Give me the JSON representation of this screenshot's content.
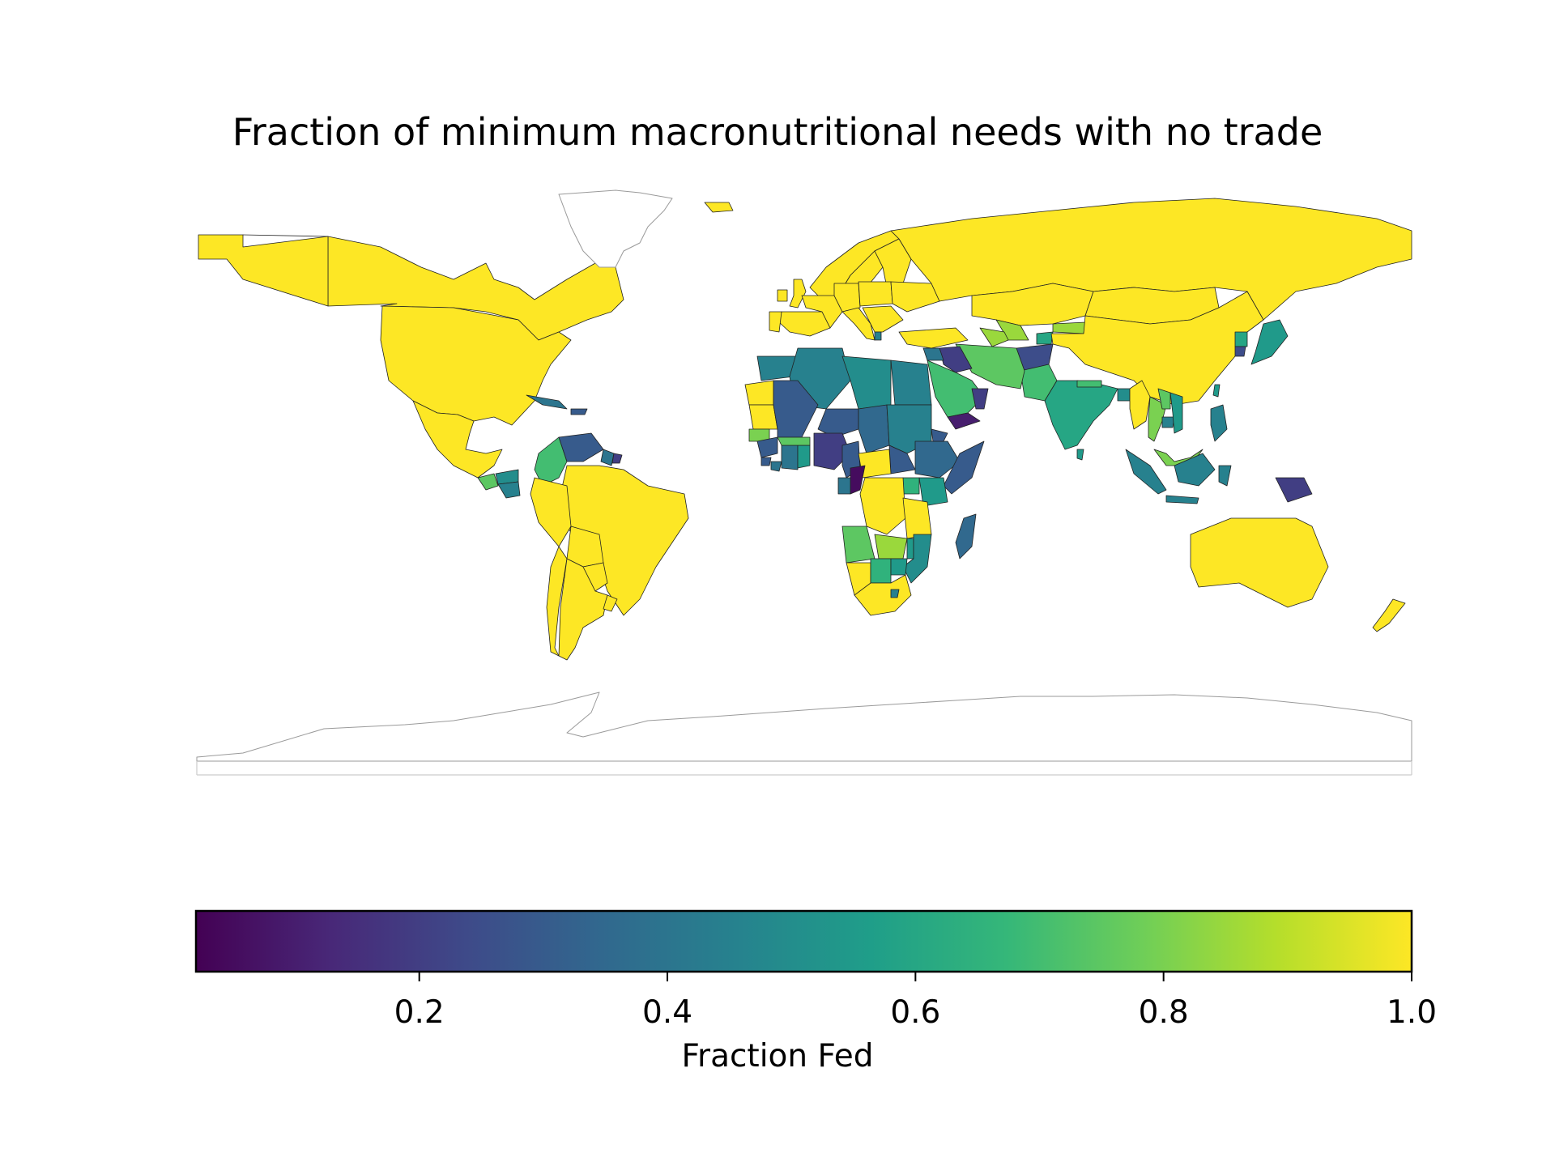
{
  "chart_data": {
    "type": "choropleth",
    "title": "Fraction of minimum macronutritional needs with no trade",
    "colorbar": {
      "label": "Fraction Fed",
      "range": [
        0.02,
        1.0
      ],
      "ticks": [
        "0.2",
        "0.4",
        "0.6",
        "0.8",
        "1.0"
      ],
      "tick_values": [
        0.2,
        0.4,
        0.6,
        0.8,
        1.0
      ],
      "colormap": "viridis",
      "orientation": "horizontal",
      "placement": "bottom"
    },
    "colormap_stops": [
      "#440154",
      "#482878",
      "#3e4a89",
      "#31688e",
      "#26828e",
      "#1f9e89",
      "#35b779",
      "#6ece58",
      "#b5de2b",
      "#fde725"
    ],
    "no_data_color": "#ffffff",
    "regions": [
      {
        "name": "Canada",
        "value": 1.0
      },
      {
        "name": "United States",
        "value": 1.0
      },
      {
        "name": "Alaska",
        "value": 1.0
      },
      {
        "name": "Mexico",
        "value": 1.0
      },
      {
        "name": "Guatemala",
        "value": 0.75
      },
      {
        "name": "Honduras",
        "value": 0.5
      },
      {
        "name": "Nicaragua",
        "value": 0.45
      },
      {
        "name": "Cuba",
        "value": 0.4
      },
      {
        "name": "Haiti",
        "value": 0.3
      },
      {
        "name": "Colombia",
        "value": 0.7
      },
      {
        "name": "Venezuela",
        "value": 0.3
      },
      {
        "name": "Guyana",
        "value": 0.4
      },
      {
        "name": "Suriname",
        "value": 0.2
      },
      {
        "name": "Brazil",
        "value": 1.0
      },
      {
        "name": "Peru",
        "value": 1.0
      },
      {
        "name": "Bolivia",
        "value": 1.0
      },
      {
        "name": "Chile",
        "value": 1.0
      },
      {
        "name": "Argentina",
        "value": 1.0
      },
      {
        "name": "Paraguay",
        "value": 1.0
      },
      {
        "name": "Uruguay",
        "value": 1.0
      },
      {
        "name": "Greenland",
        "value": null
      },
      {
        "name": "Iceland",
        "value": 1.0
      },
      {
        "name": "United Kingdom",
        "value": 1.0
      },
      {
        "name": "Ireland",
        "value": 1.0
      },
      {
        "name": "Norway",
        "value": 1.0
      },
      {
        "name": "Sweden",
        "value": 1.0
      },
      {
        "name": "Finland",
        "value": 1.0
      },
      {
        "name": "Spain",
        "value": 1.0
      },
      {
        "name": "Portugal",
        "value": 1.0
      },
      {
        "name": "France",
        "value": 1.0
      },
      {
        "name": "Germany",
        "value": 1.0
      },
      {
        "name": "Poland",
        "value": 1.0
      },
      {
        "name": "Italy",
        "value": 1.0
      },
      {
        "name": "Ukraine",
        "value": 1.0
      },
      {
        "name": "Balkans",
        "value": 1.0
      },
      {
        "name": "Albania",
        "value": 0.45
      },
      {
        "name": "Turkey",
        "value": 1.0
      },
      {
        "name": "Russia",
        "value": 1.0
      },
      {
        "name": "Kazakhstan",
        "value": 1.0
      },
      {
        "name": "Uzbekistan",
        "value": 0.85
      },
      {
        "name": "Turkmenistan",
        "value": 0.85
      },
      {
        "name": "Kyrgyzstan",
        "value": 0.85
      },
      {
        "name": "Tajikistan",
        "value": 0.6
      },
      {
        "name": "Mongolia",
        "value": 1.0
      },
      {
        "name": "China",
        "value": 1.0
      },
      {
        "name": "North Korea",
        "value": 0.6
      },
      {
        "name": "South Korea",
        "value": 0.25
      },
      {
        "name": "Japan",
        "value": 0.55
      },
      {
        "name": "Taiwan",
        "value": 0.55
      },
      {
        "name": "Afghanistan",
        "value": 0.25
      },
      {
        "name": "Pakistan",
        "value": 0.7
      },
      {
        "name": "Iran",
        "value": 0.75
      },
      {
        "name": "Iraq",
        "value": 0.2
      },
      {
        "name": "Syria",
        "value": 0.4
      },
      {
        "name": "Saudi Arabia",
        "value": 0.7
      },
      {
        "name": "Yemen",
        "value": 0.1
      },
      {
        "name": "Oman",
        "value": 0.2
      },
      {
        "name": "India",
        "value": 0.6
      },
      {
        "name": "Nepal",
        "value": 0.7
      },
      {
        "name": "Bangladesh",
        "value": 0.5
      },
      {
        "name": "Sri Lanka",
        "value": 0.55
      },
      {
        "name": "Myanmar",
        "value": 1.0
      },
      {
        "name": "Thailand",
        "value": 0.8
      },
      {
        "name": "Laos",
        "value": 0.75
      },
      {
        "name": "Cambodia",
        "value": 0.45
      },
      {
        "name": "Vietnam",
        "value": 0.55
      },
      {
        "name": "Malaysia",
        "value": 0.8
      },
      {
        "name": "Philippines",
        "value": 0.45
      },
      {
        "name": "Borneo (Indonesia)",
        "value": 0.45
      },
      {
        "name": "Sumatra",
        "value": 0.45
      },
      {
        "name": "Java",
        "value": 0.45
      },
      {
        "name": "Sulawesi",
        "value": 0.45
      },
      {
        "name": "Papua New Guinea",
        "value": 0.2
      },
      {
        "name": "Australia",
        "value": 1.0
      },
      {
        "name": "New Zealand",
        "value": 1.0
      },
      {
        "name": "Western Sahara",
        "value": 1.0
      },
      {
        "name": "Morocco",
        "value": 0.45
      },
      {
        "name": "Algeria",
        "value": 0.45
      },
      {
        "name": "Libya",
        "value": 0.5
      },
      {
        "name": "Egypt",
        "value": 0.45
      },
      {
        "name": "Mauritania",
        "value": 1.0
      },
      {
        "name": "Mali",
        "value": 0.3
      },
      {
        "name": "Niger",
        "value": 0.3
      },
      {
        "name": "Chad",
        "value": 0.35
      },
      {
        "name": "Sudan",
        "value": 0.45
      },
      {
        "name": "South Sudan",
        "value": 0.3
      },
      {
        "name": "Senegal",
        "value": 0.8
      },
      {
        "name": "Guinea",
        "value": 0.3
      },
      {
        "name": "Sierra Leone",
        "value": 0.3
      },
      {
        "name": "Liberia",
        "value": 0.4
      },
      {
        "name": "Ivory Coast",
        "value": 0.4
      },
      {
        "name": "Ghana",
        "value": 0.55
      },
      {
        "name": "Burkina Faso",
        "value": 0.75
      },
      {
        "name": "Nigeria",
        "value": 0.2
      },
      {
        "name": "Cameroon",
        "value": 0.3
      },
      {
        "name": "Central African Republic",
        "value": 1.0
      },
      {
        "name": "Ethiopia",
        "value": 0.35
      },
      {
        "name": "Eritrea",
        "value": 0.3
      },
      {
        "name": "Somalia",
        "value": 0.3
      },
      {
        "name": "Kenya",
        "value": 0.55
      },
      {
        "name": "Uganda",
        "value": 0.65
      },
      {
        "name": "Congo",
        "value": 0.05
      },
      {
        "name": "Gabon",
        "value": 0.4
      },
      {
        "name": "DR Congo",
        "value": 1.0
      },
      {
        "name": "Tanzania",
        "value": 1.0
      },
      {
        "name": "Angola",
        "value": 0.75
      },
      {
        "name": "Zambia",
        "value": 0.85
      },
      {
        "name": "Malawi",
        "value": 0.55
      },
      {
        "name": "Mozambique",
        "value": 0.5
      },
      {
        "name": "Namibia",
        "value": 1.0
      },
      {
        "name": "Botswana",
        "value": 0.65
      },
      {
        "name": "Zimbabwe",
        "value": 0.55
      },
      {
        "name": "South Africa",
        "value": 1.0
      },
      {
        "name": "Lesotho",
        "value": 0.45
      },
      {
        "name": "Madagascar",
        "value": 0.35
      },
      {
        "name": "Antarctica",
        "value": null
      }
    ]
  }
}
